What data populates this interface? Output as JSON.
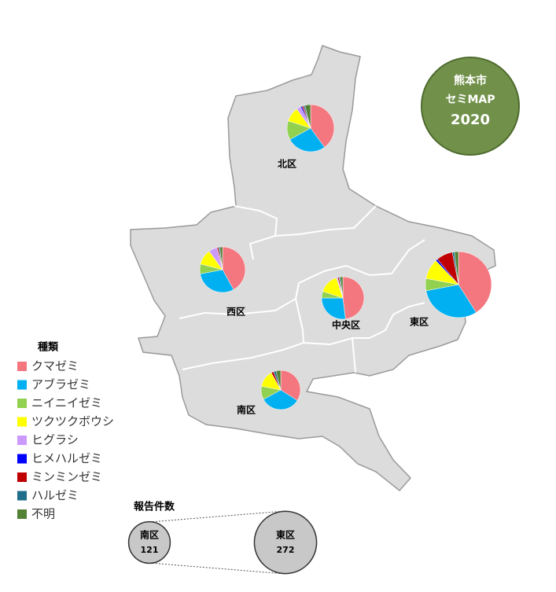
{
  "badge": {
    "lines": [
      "熊本市",
      "セミMAP",
      "2020"
    ]
  },
  "legend": {
    "title": "種類",
    "items": [
      {
        "name": "クマゼミ",
        "color": "#f4777f"
      },
      {
        "name": "アブラゼミ",
        "color": "#00b0f0"
      },
      {
        "name": "ニイニイゼミ",
        "color": "#92d050"
      },
      {
        "name": "ツクツクボウシ",
        "color": "#ffff00"
      },
      {
        "name": "ヒグラシ",
        "color": "#cc99ff"
      },
      {
        "name": "ヒメハルゼミ",
        "color": "#0000ff"
      },
      {
        "name": "ミンミンゼミ",
        "color": "#c00000"
      },
      {
        "name": "ハルゼミ",
        "color": "#1f6e8c"
      },
      {
        "name": "不明",
        "color": "#548235"
      }
    ]
  },
  "districts": [
    {
      "name": "北区",
      "values": [
        40,
        27,
        13,
        10,
        3,
        1,
        1,
        1,
        4
      ]
    },
    {
      "name": "西区",
      "values": [
        42,
        30,
        7,
        11,
        6,
        0,
        1,
        1,
        2
      ]
    },
    {
      "name": "中央区",
      "values": [
        48,
        27,
        5,
        15,
        1,
        0,
        1,
        1,
        2
      ]
    },
    {
      "name": "東区",
      "values": [
        41,
        31,
        6,
        10,
        0,
        1,
        8,
        1,
        2
      ]
    },
    {
      "name": "南区",
      "values": [
        34,
        33,
        11,
        14,
        0,
        0,
        2,
        2,
        4
      ]
    }
  ],
  "size_legend": {
    "title": "報告件数",
    "entries": [
      {
        "name": "南区",
        "count": 121
      },
      {
        "name": "東区",
        "count": 272
      }
    ]
  }
}
